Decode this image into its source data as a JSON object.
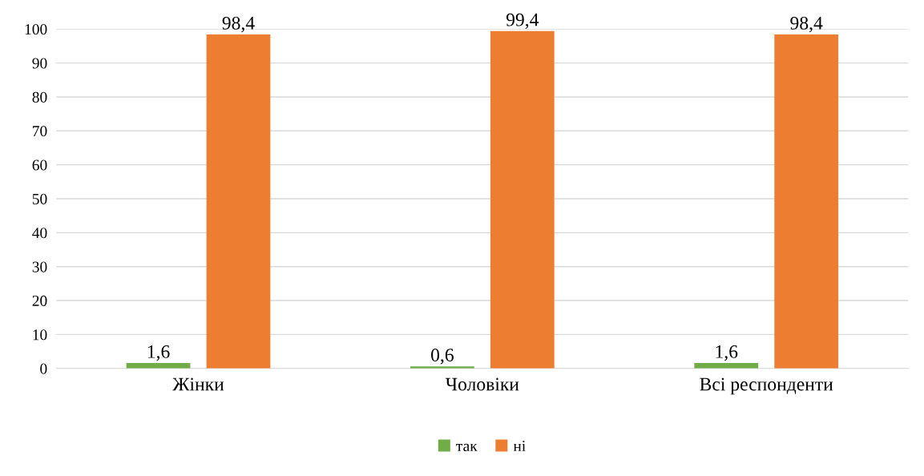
{
  "chart_data": {
    "type": "bar",
    "categories": [
      "Жінки",
      "Чоловіки",
      "Всі респонденти"
    ],
    "series": [
      {
        "name": "так",
        "color": "#70ad47",
        "values": [
          1.6,
          0.6,
          1.6
        ],
        "value_labels": [
          "1,6",
          "0,6",
          "1,6"
        ]
      },
      {
        "name": "ні",
        "color": "#ed7d31",
        "values": [
          98.4,
          99.4,
          98.4
        ],
        "value_labels": [
          "98,4",
          "99,4",
          "98,4"
        ]
      }
    ],
    "ylim": [
      0,
      100
    ],
    "yticks": [
      0,
      10,
      20,
      30,
      40,
      50,
      60,
      70,
      80,
      90,
      100
    ],
    "grid": "y",
    "legend": "bottom"
  }
}
